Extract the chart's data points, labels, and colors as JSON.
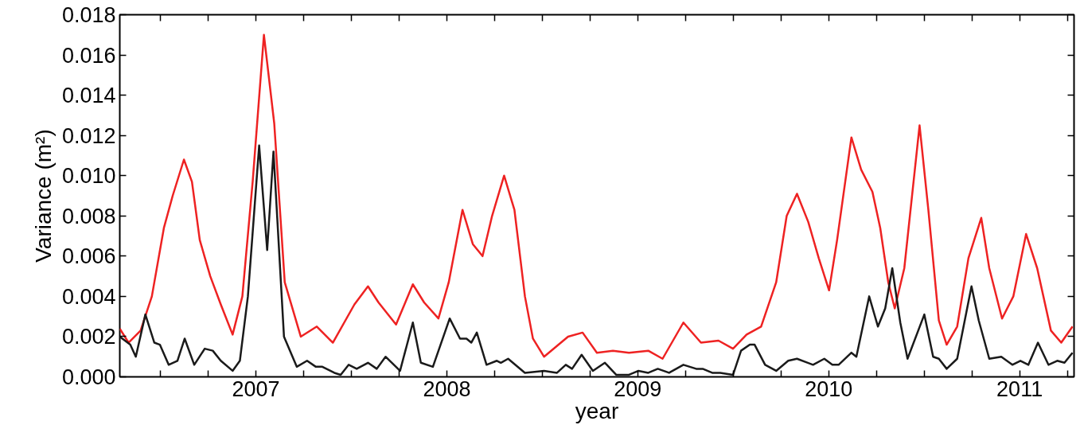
{
  "chart_data": {
    "type": "line",
    "xlabel": "year",
    "ylabel": "Variance (m²)",
    "xlim": [
      2006.287,
      2011.285
    ],
    "ylim": [
      0,
      0.018
    ],
    "xticks": [
      {
        "value": 2006.5,
        "label": null
      },
      {
        "value": 2006.75,
        "label": null
      },
      {
        "value": 2007,
        "label": "2007"
      },
      {
        "value": 2007.25,
        "label": null
      },
      {
        "value": 2007.5,
        "label": null
      },
      {
        "value": 2007.75,
        "label": null
      },
      {
        "value": 2008,
        "label": "2008"
      },
      {
        "value": 2008.25,
        "label": null
      },
      {
        "value": 2008.5,
        "label": null
      },
      {
        "value": 2008.75,
        "label": null
      },
      {
        "value": 2009,
        "label": "2009"
      },
      {
        "value": 2009.25,
        "label": null
      },
      {
        "value": 2009.5,
        "label": null
      },
      {
        "value": 2009.75,
        "label": null
      },
      {
        "value": 2010,
        "label": "2010"
      },
      {
        "value": 2010.25,
        "label": null
      },
      {
        "value": 2010.5,
        "label": null
      },
      {
        "value": 2010.75,
        "label": null
      },
      {
        "value": 2011,
        "label": "2011"
      },
      {
        "value": 2011.25,
        "label": null
      }
    ],
    "yticks": [
      {
        "value": 0,
        "label": "0.000"
      },
      {
        "value": 0.002,
        "label": "0.002"
      },
      {
        "value": 0.004,
        "label": "0.004"
      },
      {
        "value": 0.006,
        "label": "0.006"
      },
      {
        "value": 0.008,
        "label": "0.008"
      },
      {
        "value": 0.01,
        "label": "0.010"
      },
      {
        "value": 0.012,
        "label": "0.012"
      },
      {
        "value": 0.014,
        "label": "0.014"
      },
      {
        "value": 0.016,
        "label": "0.016"
      },
      {
        "value": 0.018,
        "label": "0.018"
      }
    ],
    "grid": false,
    "marker": "none",
    "line_style": "solid",
    "series": [
      {
        "color": "#ee2222",
        "x": [
          2006.287,
          2006.333,
          2006.396,
          2006.455,
          2006.518,
          2006.564,
          2006.623,
          2006.665,
          2006.706,
          2006.761,
          2006.816,
          2006.878,
          2006.929,
          2006.983,
          2007.042,
          2007.096,
          2007.151,
          2007.235,
          2007.319,
          2007.403,
          2007.516,
          2007.587,
          2007.642,
          2007.734,
          2007.822,
          2007.881,
          2007.956,
          2008.01,
          2008.082,
          2008.136,
          2008.187,
          2008.237,
          2008.3,
          2008.354,
          2008.409,
          2008.451,
          2008.509,
          2008.635,
          2008.711,
          2008.786,
          2008.87,
          2008.954,
          2009.055,
          2009.13,
          2009.239,
          2009.331,
          2009.423,
          2009.499,
          2009.57,
          2009.646,
          2009.725,
          2009.78,
          2009.834,
          2009.893,
          2009.948,
          2010.002,
          2010.044,
          2010.119,
          2010.17,
          2010.229,
          2010.27,
          2010.312,
          2010.346,
          2010.396,
          2010.476,
          2010.522,
          2010.577,
          2010.618,
          2010.673,
          2010.732,
          2010.799,
          2010.841,
          2010.908,
          2010.967,
          2011.034,
          2011.092,
          2011.164,
          2011.218,
          2011.277
        ],
        "values": [
          0.0024,
          0.0017,
          0.0023,
          0.004,
          0.0074,
          0.009,
          0.0108,
          0.0097,
          0.0068,
          0.005,
          0.0036,
          0.0021,
          0.004,
          0.0097,
          0.017,
          0.0126,
          0.0047,
          0.002,
          0.0025,
          0.0017,
          0.0036,
          0.0045,
          0.0037,
          0.0026,
          0.0046,
          0.0037,
          0.0029,
          0.0047,
          0.0083,
          0.0066,
          0.006,
          0.008,
          0.01,
          0.0083,
          0.004,
          0.0019,
          0.001,
          0.002,
          0.0022,
          0.0012,
          0.0013,
          0.0012,
          0.0013,
          0.0009,
          0.0027,
          0.0017,
          0.0018,
          0.0014,
          0.0021,
          0.0025,
          0.0047,
          0.008,
          0.0091,
          0.0077,
          0.0059,
          0.0043,
          0.0068,
          0.0119,
          0.0103,
          0.0092,
          0.0074,
          0.0047,
          0.0034,
          0.0054,
          0.0125,
          0.0083,
          0.0028,
          0.0016,
          0.0025,
          0.0059,
          0.0079,
          0.0054,
          0.0029,
          0.004,
          0.0071,
          0.0054,
          0.0023,
          0.0017,
          0.0025
        ]
      },
      {
        "color": "#1a1a1a",
        "x": [
          2006.287,
          2006.342,
          2006.371,
          2006.421,
          2006.468,
          2006.497,
          2006.543,
          2006.589,
          2006.627,
          2006.677,
          2006.732,
          2006.774,
          2006.816,
          2006.878,
          2006.916,
          2006.958,
          2007.017,
          2007.059,
          2007.092,
          2007.147,
          2007.214,
          2007.268,
          2007.314,
          2007.348,
          2007.411,
          2007.444,
          2007.486,
          2007.528,
          2007.587,
          2007.633,
          2007.679,
          2007.755,
          2007.822,
          2007.864,
          2007.927,
          2008.015,
          2008.069,
          2008.103,
          2008.128,
          2008.157,
          2008.208,
          2008.262,
          2008.283,
          2008.321,
          2008.409,
          2008.509,
          2008.577,
          2008.623,
          2008.656,
          2008.706,
          2008.765,
          2008.828,
          2008.887,
          2008.954,
          2009.004,
          2009.055,
          2009.105,
          2009.164,
          2009.239,
          2009.306,
          2009.34,
          2009.39,
          2009.432,
          2009.499,
          2009.541,
          2009.587,
          2009.612,
          2009.667,
          2009.725,
          2009.788,
          2009.834,
          2009.918,
          2009.977,
          2010.019,
          2010.052,
          2010.119,
          2010.145,
          2010.212,
          2010.258,
          2010.296,
          2010.333,
          2010.375,
          2010.413,
          2010.501,
          2010.547,
          2010.577,
          2010.618,
          2010.673,
          2010.748,
          2010.786,
          2010.841,
          2010.904,
          2010.962,
          2011.004,
          2011.046,
          2011.096,
          2011.151,
          2011.197,
          2011.235,
          2011.277
        ],
        "values": [
          0.002,
          0.0016,
          0.001,
          0.0031,
          0.0017,
          0.0016,
          0.0006,
          0.0008,
          0.0019,
          0.0006,
          0.0014,
          0.0013,
          0.0008,
          0.0003,
          0.0008,
          0.004,
          0.0115,
          0.0063,
          0.0112,
          0.002,
          0.0005,
          0.0008,
          0.0005,
          0.0005,
          0.0002,
          0.0001,
          0.0006,
          0.0004,
          0.0007,
          0.0004,
          0.001,
          0.0003,
          0.0027,
          0.0007,
          0.0005,
          0.0029,
          0.0019,
          0.0019,
          0.0017,
          0.0022,
          0.0006,
          0.0008,
          0.0007,
          0.0009,
          0.0002,
          0.0003,
          0.0002,
          0.0006,
          0.0004,
          0.0011,
          0.0003,
          0.0007,
          0.0001,
          0.0001,
          0.0003,
          0.0002,
          0.0004,
          0.0002,
          0.0006,
          0.0004,
          0.0004,
          0.0002,
          0.0002,
          0.0001,
          0.0013,
          0.0016,
          0.0016,
          0.0006,
          0.0003,
          0.0008,
          0.0009,
          0.0006,
          0.0009,
          0.0006,
          0.0006,
          0.0012,
          0.001,
          0.004,
          0.0025,
          0.0034,
          0.0054,
          0.0027,
          0.0009,
          0.0031,
          0.001,
          0.0009,
          0.0004,
          0.0009,
          0.0045,
          0.0028,
          0.0009,
          0.001,
          0.0006,
          0.0008,
          0.0006,
          0.0017,
          0.0006,
          0.0008,
          0.0007,
          0.0012
        ]
      }
    ]
  }
}
